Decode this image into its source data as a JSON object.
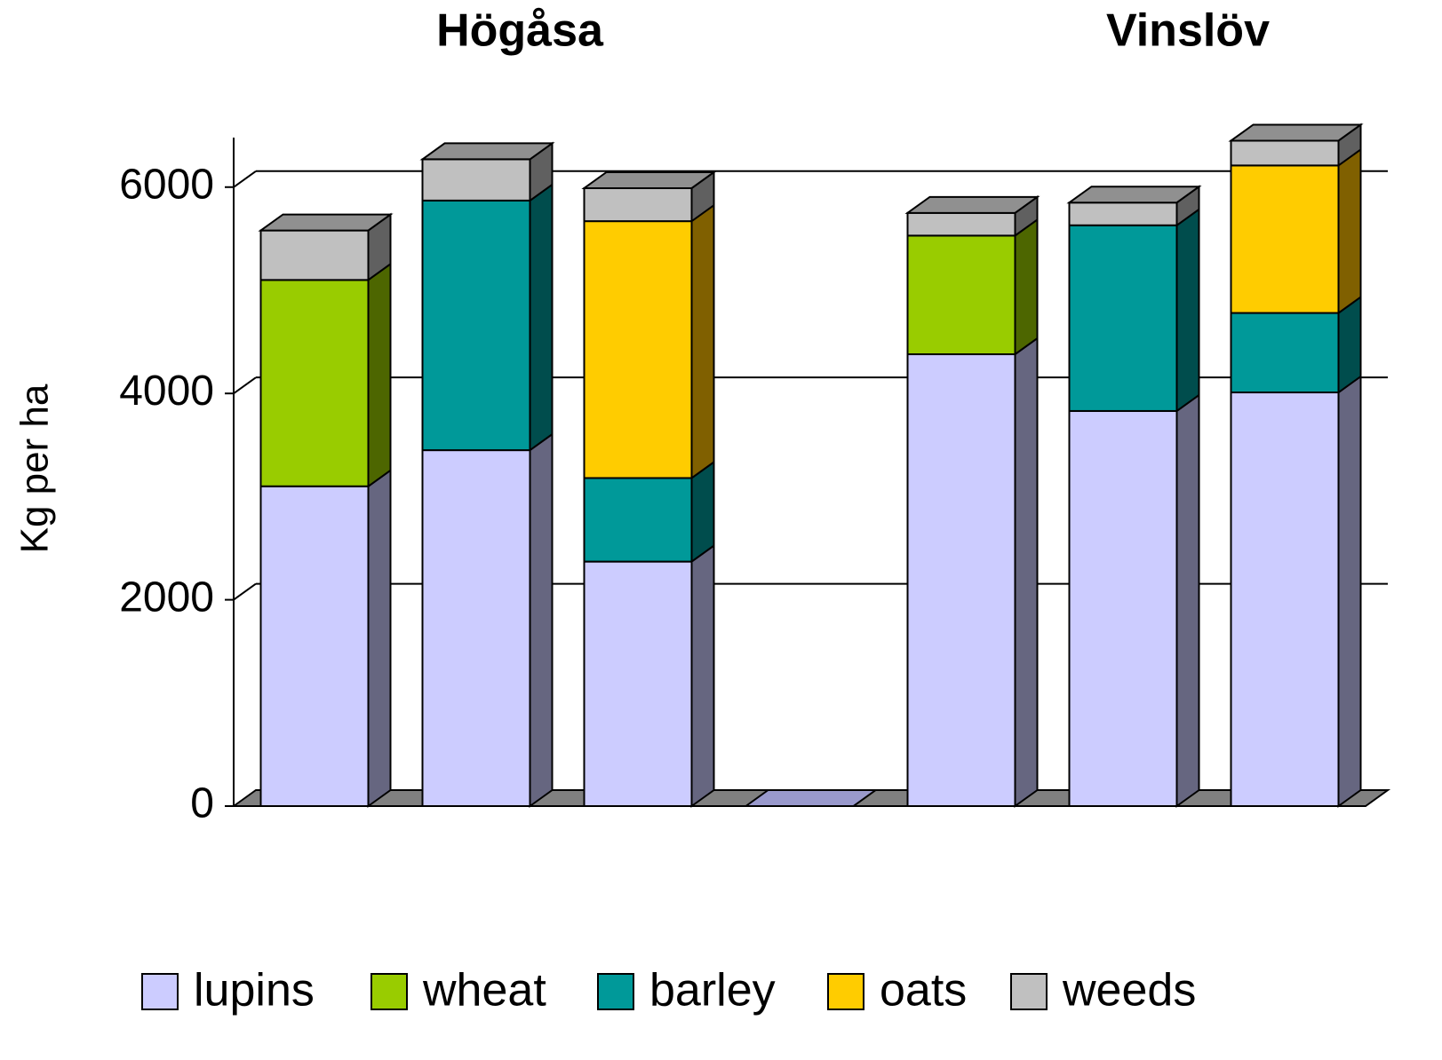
{
  "chart_data": {
    "type": "bar3d_stacked",
    "annotations": [
      "Högåsa",
      "Vinslöv"
    ],
    "y_label": "Kg per ha",
    "categories": [
      null,
      null,
      null,
      null,
      null,
      null,
      null
    ],
    "series": [
      {
        "name": "lupins",
        "color": "#ccccff",
        "side_color": "#666680",
        "values": [
          3100,
          3450,
          2370,
          0,
          4380,
          3830,
          4010
        ]
      },
      {
        "name": "wheat",
        "color": "#99cc00",
        "side_color": "#4d6600",
        "values": [
          2000,
          0,
          0,
          0,
          1150,
          0,
          0
        ]
      },
      {
        "name": "barley",
        "color": "#009999",
        "side_color": "#004d4d",
        "values": [
          0,
          2420,
          810,
          0,
          0,
          1800,
          770
        ]
      },
      {
        "name": "oats",
        "color": "#ffcc00",
        "side_color": "#806000",
        "values": [
          0,
          0,
          2490,
          0,
          0,
          0,
          1430
        ]
      },
      {
        "name": "weeds",
        "color": "#c0c0c0",
        "side_color": "#606060",
        "values": [
          480,
          400,
          320,
          0,
          220,
          220,
          240
        ]
      }
    ],
    "ylim": [
      0,
      6480
    ],
    "yticks": [
      0,
      2000,
      4000,
      6000
    ],
    "grid": true,
    "legend": "bottom"
  }
}
